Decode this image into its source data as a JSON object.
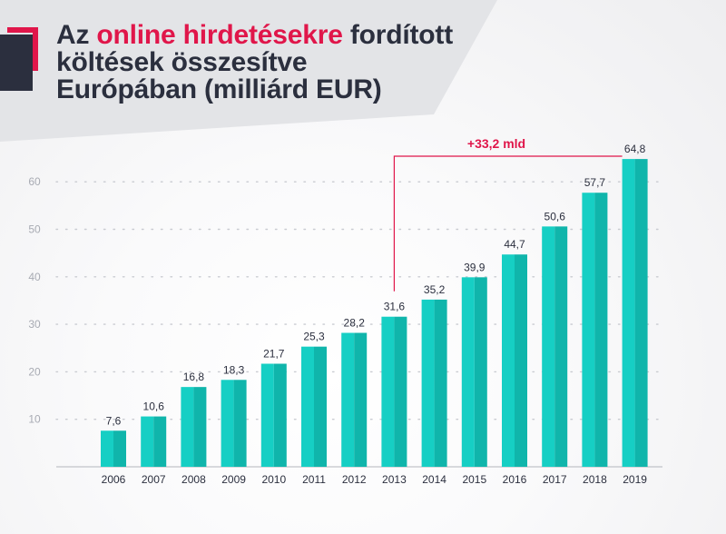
{
  "title": {
    "part1": "Az ",
    "highlight": "online hirdetésekre",
    "part2": " fordított",
    "line2": "költések összesítve",
    "line3": "Európában (milliárd EUR)"
  },
  "colors": {
    "bar": "#16cfc4",
    "bar_shade": "#10b5ab",
    "accent": "#e0164a",
    "dark": "#2b2f3e",
    "banner": "#e3e4e7"
  },
  "chart_data": {
    "type": "bar",
    "categories": [
      "2006",
      "2007",
      "2008",
      "2009",
      "2010",
      "2011",
      "2012",
      "2013",
      "2014",
      "2015",
      "2016",
      "2017",
      "2018",
      "2019"
    ],
    "values": [
      7.6,
      10.6,
      16.8,
      18.3,
      21.7,
      25.3,
      28.2,
      31.6,
      35.2,
      39.9,
      44.7,
      50.6,
      57.7,
      64.8
    ],
    "value_labels": [
      "7,6",
      "10,6",
      "16,8",
      "18,3",
      "21,7",
      "25,3",
      "28,2",
      "31,6",
      "35,2",
      "39,9",
      "44,7",
      "50,6",
      "57,7",
      "64,8"
    ],
    "yticks": [
      10,
      20,
      30,
      40,
      50,
      60
    ],
    "ylim": [
      0,
      70
    ],
    "grid": true,
    "annotation": {
      "label": "+33,2 mld",
      "from": "2013",
      "to": "2019"
    }
  }
}
